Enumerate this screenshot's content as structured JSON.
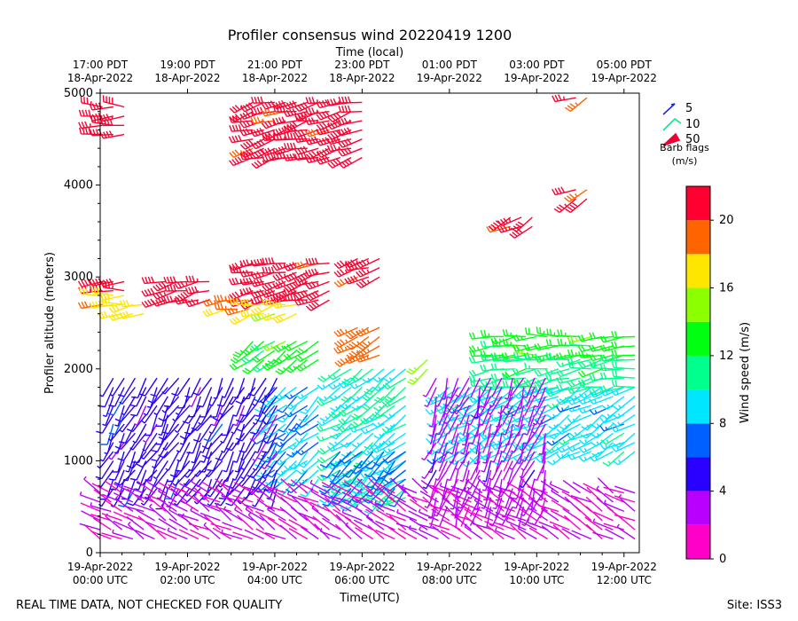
{
  "chart_data": {
    "type": "wind-barb-time-height",
    "title": "Profiler consensus wind 20220419 1200",
    "top_axis_label": "Time (local)",
    "xlabel": "Time(UTC)",
    "ylabel": "Profiler altitude (meters)",
    "xlim_hours": [
      0,
      12.35
    ],
    "ylim": [
      0,
      5000
    ],
    "y_ticks": [
      0,
      1000,
      2000,
      3000,
      4000,
      5000
    ],
    "bottom_ticks": [
      {
        "hour": 0,
        "date": "19-Apr-2022",
        "time": "00:00 UTC"
      },
      {
        "hour": 2,
        "date": "19-Apr-2022",
        "time": "02:00 UTC"
      },
      {
        "hour": 4,
        "date": "19-Apr-2022",
        "time": "04:00 UTC"
      },
      {
        "hour": 6,
        "date": "19-Apr-2022",
        "time": "06:00 UTC"
      },
      {
        "hour": 8,
        "date": "19-Apr-2022",
        "time": "08:00 UTC"
      },
      {
        "hour": 10,
        "date": "19-Apr-2022",
        "time": "10:00 UTC"
      },
      {
        "hour": 12,
        "date": "19-Apr-2022",
        "time": "12:00 UTC"
      }
    ],
    "top_ticks": [
      {
        "hour": 0,
        "time": "17:00 PDT",
        "date": "18-Apr-2022"
      },
      {
        "hour": 2,
        "time": "19:00 PDT",
        "date": "18-Apr-2022"
      },
      {
        "hour": 4,
        "time": "21:00 PDT",
        "date": "18-Apr-2022"
      },
      {
        "hour": 6,
        "time": "23:00 PDT",
        "date": "18-Apr-2022"
      },
      {
        "hour": 8,
        "time": "01:00 PDT",
        "date": "19-Apr-2022"
      },
      {
        "hour": 10,
        "time": "03:00 PDT",
        "date": "19-Apr-2022"
      },
      {
        "hour": 12,
        "time": "05:00 PDT",
        "date": "19-Apr-2022"
      }
    ],
    "legend": {
      "title_line1": "Barb flags",
      "title_line2": "(m/s)",
      "entries": [
        {
          "label": "5",
          "color": "#1a22ee"
        },
        {
          "label": "10",
          "color": "#00ee88"
        },
        {
          "label": "50",
          "color": "#ee0030"
        }
      ]
    },
    "colorbar": {
      "label": "Wind speed (m/s)",
      "range": [
        0,
        22
      ],
      "ticks": [
        0,
        4,
        8,
        12,
        16,
        20
      ],
      "levels": [
        {
          "from": 0,
          "to": 2,
          "color": "#ff00c8"
        },
        {
          "from": 2,
          "to": 4,
          "color": "#b900ff"
        },
        {
          "from": 4,
          "to": 6,
          "color": "#2a00ff"
        },
        {
          "from": 6,
          "to": 8,
          "color": "#0060ff"
        },
        {
          "from": 8,
          "to": 10,
          "color": "#00e6ff"
        },
        {
          "from": 10,
          "to": 12,
          "color": "#00ff8c"
        },
        {
          "from": 12,
          "to": 14,
          "color": "#00ff10"
        },
        {
          "from": 14,
          "to": 16,
          "color": "#8cff00"
        },
        {
          "from": 16,
          "to": 18,
          "color": "#ffe600"
        },
        {
          "from": 18,
          "to": 20,
          "color": "#ff6400"
        },
        {
          "from": 20,
          "to": 22,
          "color": "#ff0030"
        }
      ]
    },
    "barb_groups": [
      {
        "hours": [
          0.05,
          0.55
        ],
        "alt_range": [
          4550,
          4850
        ],
        "speed": 21,
        "dir_deg": 270
      },
      {
        "hours": [
          0.05,
          0.55
        ],
        "alt_range": [
          2850,
          3000
        ],
        "speed": 21,
        "dir_deg": 265
      },
      {
        "hours": [
          0.05,
          0.55
        ],
        "alt_range": [
          2700,
          2800
        ],
        "speed": 18,
        "dir_deg": 265
      },
      {
        "hours": [
          0.5,
          1.0
        ],
        "alt_range": [
          2600,
          2700
        ],
        "speed": 17,
        "dir_deg": 260
      },
      {
        "hours": [
          1.5,
          2.5
        ],
        "alt_range": [
          2750,
          3000
        ],
        "speed": 21,
        "dir_deg": 255
      },
      {
        "hours": [
          2.9,
          3.4
        ],
        "alt_range": [
          2650,
          2800
        ],
        "speed": 19,
        "dir_deg": 255
      },
      {
        "hours": [
          3.5,
          6.0
        ],
        "alt_range": [
          4300,
          4950
        ],
        "speed": 21,
        "dir_deg": 255
      },
      {
        "hours": [
          3.5,
          5.3
        ],
        "alt_range": [
          2750,
          3200
        ],
        "speed": 21,
        "dir_deg": 255
      },
      {
        "hours": [
          3.5,
          4.5
        ],
        "alt_range": [
          2600,
          2700
        ],
        "speed": 17,
        "dir_deg": 255
      },
      {
        "hours": [
          5.9,
          6.6
        ],
        "alt_range": [
          3000,
          3250
        ],
        "speed": 21,
        "dir_deg": 250
      },
      {
        "hours": [
          5.9,
          6.6
        ],
        "alt_range": [
          2150,
          2450
        ],
        "speed": 19,
        "dir_deg": 240
      },
      {
        "hours": [
          3.5,
          5.0
        ],
        "alt_range": [
          2100,
          2350
        ],
        "speed": 13,
        "dir_deg": 235
      },
      {
        "hours": [
          7.5,
          7.7
        ],
        "alt_range": [
          2000,
          2150
        ],
        "speed": 15,
        "dir_deg": 235
      },
      {
        "hours": [
          9.4,
          9.9
        ],
        "alt_range": [
          3550,
          3650
        ],
        "speed": 21,
        "dir_deg": 240
      },
      {
        "hours": [
          10.9,
          11.3
        ],
        "alt_range": [
          3850,
          3950
        ],
        "speed": 21,
        "dir_deg": 245
      },
      {
        "hours": [
          10.9,
          11.2
        ],
        "alt_range": [
          4950,
          5000
        ],
        "speed": 21,
        "dir_deg": 245
      },
      {
        "hours": [
          9.0,
          12.3
        ],
        "alt_range": [
          2150,
          2350
        ],
        "speed": 13,
        "dir_deg": 265
      },
      {
        "hours": [
          9.0,
          12.3
        ],
        "alt_range": [
          1800,
          2100
        ],
        "speed": 11,
        "dir_deg": 260
      },
      {
        "hours": [
          8.0,
          12.3
        ],
        "alt_range": [
          1100,
          1800
        ],
        "speed": 9,
        "dir_deg": 240
      },
      {
        "hours": [
          4.0,
          5.2
        ],
        "alt_range": [
          800,
          1800
        ],
        "speed": 8,
        "dir_deg": 230
      },
      {
        "hours": [
          5.5,
          7.2
        ],
        "alt_range": [
          600,
          2000
        ],
        "speed": 10,
        "dir_deg": 235
      },
      {
        "hours": [
          5.5,
          7.2
        ],
        "alt_range": [
          700,
          1100
        ],
        "speed": 7,
        "dir_deg": 225
      },
      {
        "hours": [
          0.3,
          4.2
        ],
        "alt_range": [
          700,
          1900
        ],
        "speed": 5,
        "dir_deg": 210
      },
      {
        "hours": [
          0.0,
          12.3
        ],
        "alt_range": [
          150,
          700
        ],
        "speed": 2,
        "dir_deg": 300
      },
      {
        "hours": [
          7.7,
          10.2
        ],
        "alt_range": [
          500,
          1900
        ],
        "speed": 3,
        "dir_deg": 200
      }
    ]
  },
  "footer": {
    "left_note": "REAL TIME DATA, NOT CHECKED FOR QUALITY",
    "site": "Site: ISS3"
  }
}
